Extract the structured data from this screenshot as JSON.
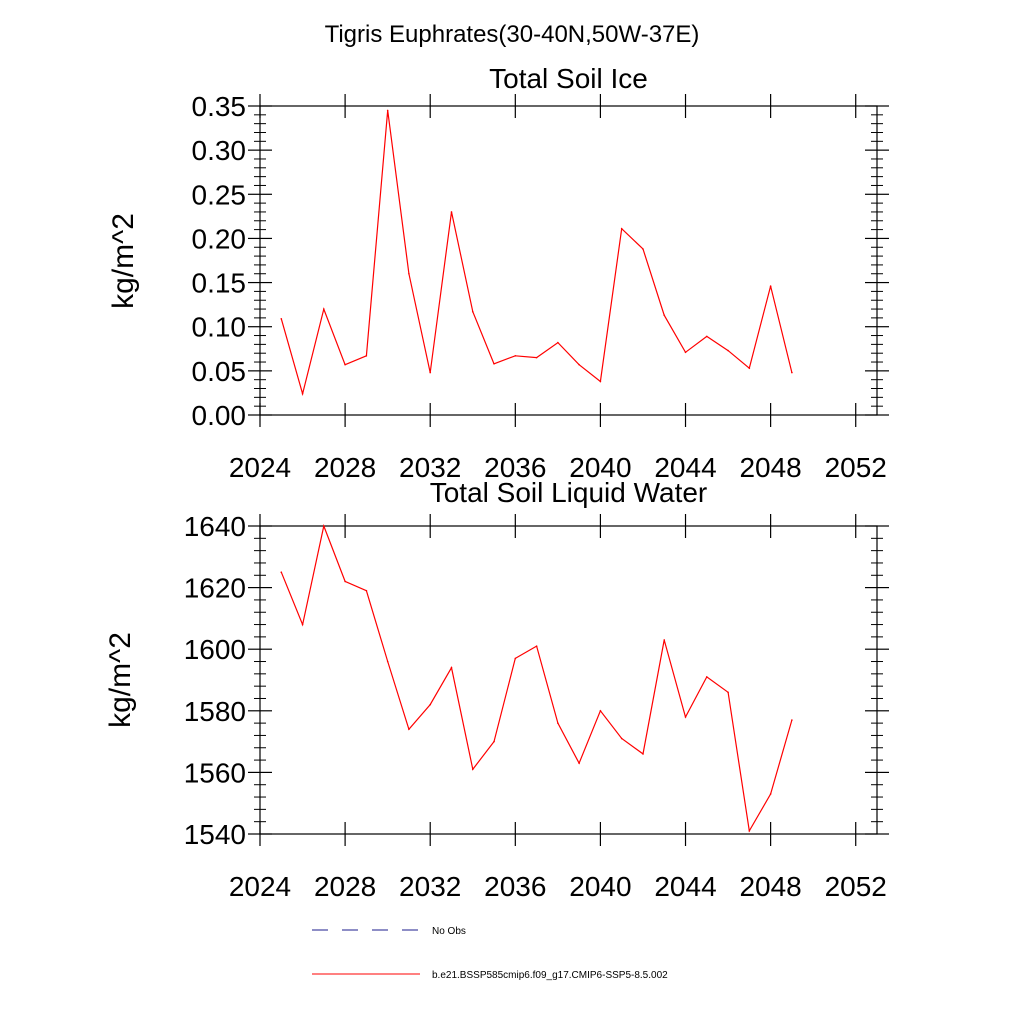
{
  "page_title": "Tigris Euphrates(30-40N,50W-37E)",
  "chart_data": [
    {
      "type": "line",
      "title": "Total Soil Ice",
      "xlabel": "",
      "ylabel": "kg/m^2",
      "xlim": [
        2024,
        2053
      ],
      "ylim": [
        0,
        0.35
      ],
      "xticks": [
        "2024",
        "2028",
        "2032",
        "2036",
        "2040",
        "2044",
        "2048",
        "2052"
      ],
      "yticks": [
        "0.00",
        "0.05",
        "0.10",
        "0.15",
        "0.20",
        "0.25",
        "0.30",
        "0.35"
      ],
      "x": [
        2025,
        2026,
        2027,
        2028,
        2029,
        2030,
        2031,
        2032,
        2033,
        2034,
        2035,
        2036,
        2037,
        2038,
        2039,
        2040,
        2041,
        2042,
        2043,
        2044,
        2045,
        2046,
        2047,
        2048,
        2049
      ],
      "series": [
        {
          "name": "b.e21.BSSP585cmip6.f09_g17.CMIP6-SSP5-8.5.002",
          "color": "#ff0000",
          "values": [
            0.109,
            0.024,
            0.12,
            0.057,
            0.067,
            0.345,
            0.16,
            0.048,
            0.23,
            0.117,
            0.058,
            0.067,
            0.065,
            0.082,
            0.057,
            0.038,
            0.211,
            0.188,
            0.113,
            0.071,
            0.089,
            0.073,
            0.053,
            0.146,
            0.048
          ]
        }
      ]
    },
    {
      "type": "line",
      "title": "Total Soil Liquid Water",
      "xlabel": "",
      "ylabel": "kg/m^2",
      "xlim": [
        2024,
        2053
      ],
      "ylim": [
        1540,
        1640
      ],
      "xticks": [
        "2024",
        "2028",
        "2032",
        "2036",
        "2040",
        "2044",
        "2048",
        "2052"
      ],
      "yticks": [
        "1540",
        "1560",
        "1580",
        "1600",
        "1620",
        "1640"
      ],
      "x": [
        2025,
        2026,
        2027,
        2028,
        2029,
        2030,
        2031,
        2032,
        2033,
        2034,
        2035,
        2036,
        2037,
        2038,
        2039,
        2040,
        2041,
        2042,
        2043,
        2044,
        2045,
        2046,
        2047,
        2048,
        2049
      ],
      "series": [
        {
          "name": "b.e21.BSSP585cmip6.f09_g17.CMIP6-SSP5-8.5.002",
          "color": "#ff0000",
          "values": [
            1625,
            1608,
            1640,
            1622,
            1619,
            1596,
            1574,
            1582,
            1594,
            1561,
            1570,
            1597,
            1601,
            1576,
            1563,
            1580,
            1571,
            1566,
            1603,
            1578,
            1591,
            1586,
            1541,
            1553,
            1577
          ]
        }
      ]
    }
  ],
  "legend": [
    {
      "label": "No Obs",
      "color": "#1c1c8c",
      "style": "dashed"
    },
    {
      "label": "b.e21.BSSP585cmip6.f09_g17.CMIP6-SSP5-8.5.002",
      "color": "#ff0000",
      "style": "solid"
    }
  ]
}
